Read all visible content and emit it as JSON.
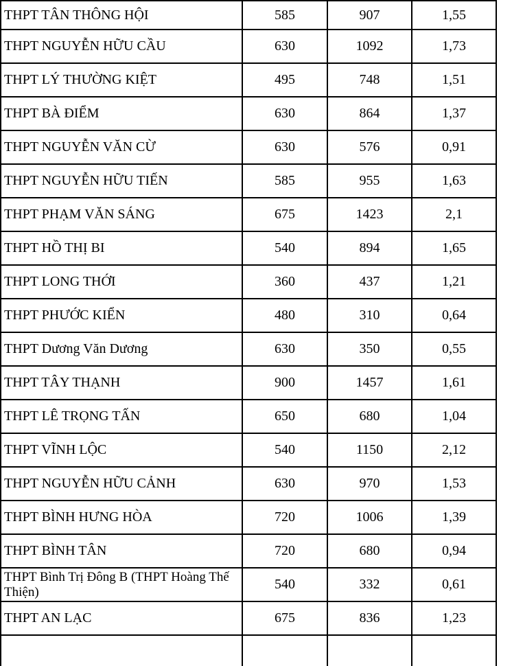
{
  "document": {
    "language": "vi",
    "colors": {
      "background": "#ffffff",
      "text": "#000000",
      "border": "#000000"
    },
    "table": {
      "rows": [
        {
          "school": "THPT TÂN THÔNG HỘI",
          "values": [
            "585",
            "907",
            "1,55"
          ]
        },
        {
          "school": "THPT NGUYỄN HỮU CẦU",
          "values": [
            "630",
            "1092",
            "1,73"
          ]
        },
        {
          "school": "THPT LÝ THƯỜNG KIỆT",
          "values": [
            "495",
            "748",
            "1,51"
          ]
        },
        {
          "school": "THPT BÀ ĐIỂM",
          "values": [
            "630",
            "864",
            "1,37"
          ]
        },
        {
          "school": "THPT NGUYỄN VĂN CỪ",
          "values": [
            "630",
            "576",
            "0,91"
          ]
        },
        {
          "school": "THPT NGUYỄN HỮU TIẾN",
          "values": [
            "585",
            "955",
            "1,63"
          ]
        },
        {
          "school": "THPT PHẠM VĂN SÁNG",
          "values": [
            "675",
            "1423",
            "2,1"
          ]
        },
        {
          "school": "THPT HỒ THỊ BI",
          "values": [
            "540",
            "894",
            "1,65"
          ]
        },
        {
          "school": "THPT LONG THỚI",
          "values": [
            "360",
            "437",
            "1,21"
          ]
        },
        {
          "school": "THPT PHƯỚC KIỂN",
          "values": [
            "480",
            "310",
            "0,64"
          ]
        },
        {
          "school": "THPT Dương Văn Dương",
          "values": [
            "630",
            "350",
            "0,55"
          ]
        },
        {
          "school": "THPT TÂY THẠNH",
          "values": [
            "900",
            "1457",
            "1,61"
          ]
        },
        {
          "school": "THPT LÊ TRỌNG TẤN",
          "values": [
            "650",
            "680",
            "1,04"
          ]
        },
        {
          "school": "THPT VĨNH LỘC",
          "values": [
            "540",
            "1150",
            "2,12"
          ]
        },
        {
          "school": "THPT NGUYỄN HỮU CẢNH",
          "values": [
            "630",
            "970",
            "1,53"
          ]
        },
        {
          "school": "THPT BÌNH HƯNG HÒA",
          "values": [
            "720",
            "1006",
            "1,39"
          ]
        },
        {
          "school": "THPT BÌNH TÂN",
          "values": [
            "720",
            "680",
            "0,94"
          ]
        },
        {
          "school": "THPT Bình Trị Đông B (THPT Hoàng Thế Thiện)",
          "values": [
            "540",
            "332",
            "0,61"
          ]
        },
        {
          "school": "THPT AN LẠC",
          "values": [
            "675",
            "836",
            "1,23"
          ]
        }
      ]
    }
  }
}
